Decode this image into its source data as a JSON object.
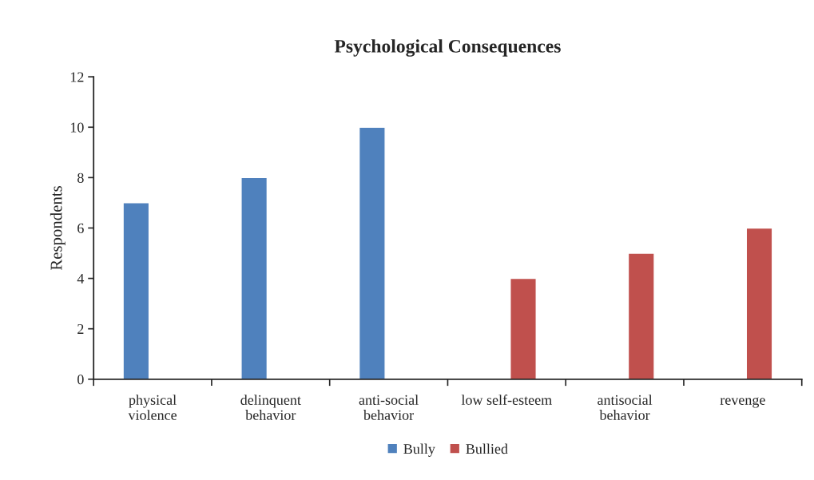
{
  "chart_data": {
    "type": "bar",
    "title": "Psychological Consequences",
    "ylabel": "Respondents",
    "categories": [
      "physical\nviolence",
      "delinquent\nbehavior",
      "anti-social\nbehavior",
      "low self-esteem",
      "antisocial\nbehavior",
      "revenge"
    ],
    "series": [
      {
        "name": "Bully",
        "color": "#4f81bd",
        "values": [
          7,
          8,
          10,
          null,
          null,
          null
        ]
      },
      {
        "name": "Bullied",
        "color": "#c0504d",
        "values": [
          null,
          null,
          null,
          4,
          5,
          6
        ]
      }
    ],
    "ylim": [
      0,
      12
    ],
    "yticks": [
      0,
      2,
      4,
      6,
      8,
      10,
      12
    ],
    "grid": false,
    "legend": "bottom"
  }
}
